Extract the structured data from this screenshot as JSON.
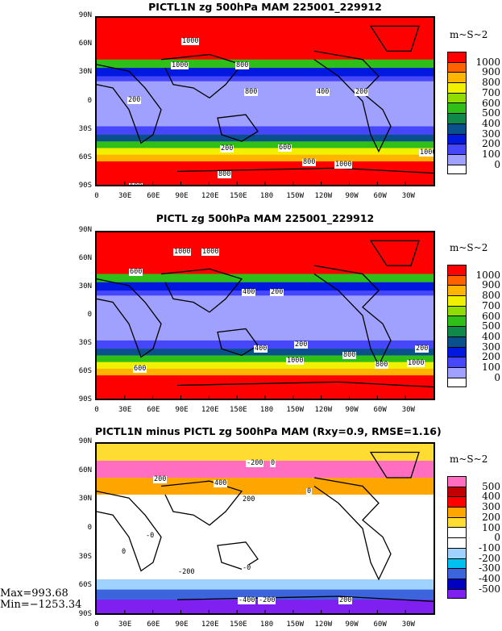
{
  "panels": [
    {
      "title": "PICTL1N zg 500hPa MAM 225001_229912",
      "contour_labels": [
        "1000",
        "800",
        "1000",
        "800",
        "400",
        "200",
        "200",
        "200",
        "600",
        "800",
        "1000",
        "800",
        "600",
        "200",
        "1000",
        "600"
      ]
    },
    {
      "title": "PICTL zg 500hPa MAM 225001_229912",
      "contour_labels": [
        "1000",
        "1000",
        "600",
        "400",
        "200",
        "200",
        "400",
        "1000",
        "800",
        "600",
        "800",
        "1000",
        "200"
      ]
    },
    {
      "title": "PICTL1N minus PICTL zg 500hPa MAM (Rxy=0.9, RMSE=1.16)",
      "contour_labels": [
        "200",
        "-200",
        "0",
        "400",
        "200",
        "0",
        "-0",
        "0",
        "-0",
        "-200",
        "-400",
        "-200",
        "200"
      ]
    }
  ],
  "y_ticks": [
    "90N",
    "60N",
    "30N",
    "0",
    "30S",
    "60S",
    "90S"
  ],
  "x_ticks": [
    "0",
    "30E",
    "60E",
    "90E",
    "120E",
    "150E",
    "180",
    "150W",
    "120W",
    "90W",
    "60W",
    "30W"
  ],
  "legend_abs": {
    "unit": "m~S~2",
    "labels": [
      "1000",
      "900",
      "800",
      "700",
      "600",
      "500",
      "400",
      "300",
      "200",
      "100",
      "0"
    ],
    "colors": [
      "#ff0000",
      "#ff6000",
      "#ffb400",
      "#f0f000",
      "#90dc00",
      "#30be18",
      "#10884a",
      "#0a508c",
      "#0018e0",
      "#4646fa",
      "#a0a0ff",
      "#ffffff"
    ]
  },
  "legend_diff": {
    "unit": "m~S~2",
    "labels": [
      "500",
      "400",
      "300",
      "200",
      "100",
      "0",
      "-100",
      "-200",
      "-300",
      "-400",
      "-500"
    ],
    "colors": [
      "#ff6ec0",
      "#c00000",
      "#ff0000",
      "#ffa500",
      "#ffdc32",
      "#ffffff",
      "#ffffff",
      "#a0d2ff",
      "#00c0f0",
      "#3c64dc",
      "#0000c0",
      "#8020f0"
    ]
  },
  "stats": {
    "max": "Max=993.68",
    "min": "Min=−1253.34"
  }
}
